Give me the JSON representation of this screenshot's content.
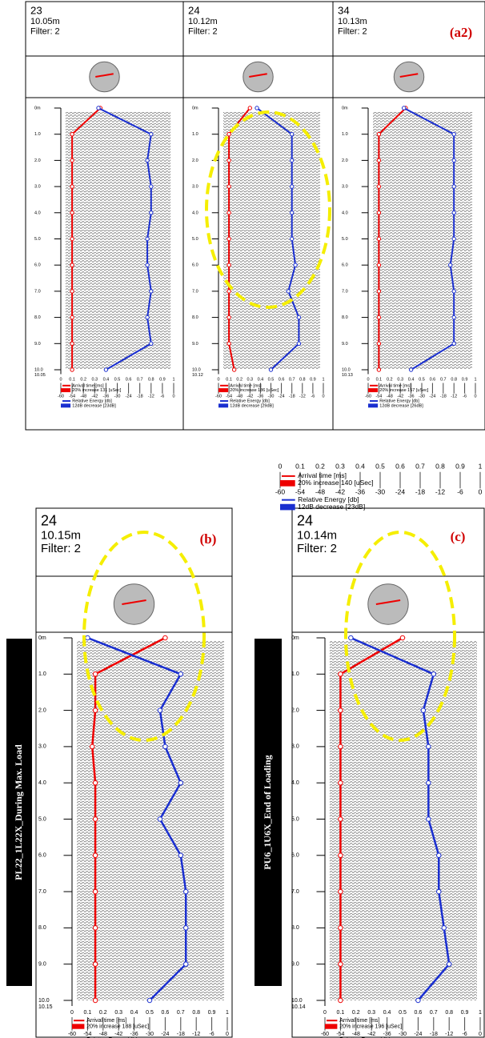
{
  "labels": {
    "top": "(a2)",
    "b": "(b)",
    "c": "(c)",
    "side_b": "PL22_1L22X_During Max. Load",
    "side_c": "PU6_1U6X_End of Loading"
  },
  "depth_ticks": [
    "0m",
    "1.0",
    "2.0",
    "3.0",
    "4.0",
    "5.0",
    "6.0",
    "7.0",
    "8.0",
    "9.0",
    "10.0"
  ],
  "time_ticks": [
    0,
    0.1,
    0.2,
    0.3,
    0.4,
    0.5,
    0.6,
    0.7,
    0.8,
    0.9,
    1
  ],
  "energy_ticks": [
    -60,
    -54,
    -48,
    -42,
    -36,
    -30,
    -24,
    -18,
    -12,
    -6,
    0
  ],
  "legend": {
    "arrival": "Arrival time [ms]",
    "energy": "Relative Energy [db]",
    "increase": "20% increase  140 [uSec]",
    "decrease": "12dB decrease [23dB]"
  },
  "panels": [
    {
      "id": "23",
      "length": "10.05m",
      "filter": "Filter: 2",
      "bottom": "10.05",
      "increase": "20% increase  131 [uSec]",
      "decrease": "12dB decrease [23dB]",
      "arrival": [
        0.35,
        0.1,
        0.1,
        0.1,
        0.1,
        0.1,
        0.1,
        0.1,
        0.1,
        0.1,
        0.1
      ],
      "energy": [
        -40,
        -12,
        -14,
        -12,
        -12,
        -14,
        -14,
        -12,
        -14,
        -12,
        -36
      ]
    },
    {
      "id": "24",
      "length": "10.12m",
      "filter": "Filter: 2",
      "bottom": "10.12",
      "increase": "20% increase  186 [uSec]",
      "decrease": "12dB decrease [29dB]",
      "arrival": [
        0.3,
        0.1,
        0.1,
        0.1,
        0.1,
        0.1,
        0.1,
        0.1,
        0.1,
        0.1,
        0.15
      ],
      "energy": [
        -38,
        -18,
        -18,
        -18,
        -18,
        -18,
        -16,
        -20,
        -14,
        -14,
        -30
      ]
    },
    {
      "id": "34",
      "length": "10.13m",
      "filter": "Filter: 2",
      "bottom": "10.13",
      "increase": "20% increase  157 [uSec]",
      "decrease": "12dB decrease [26dB]",
      "arrival": [
        0.35,
        0.1,
        0.1,
        0.1,
        0.1,
        0.1,
        0.1,
        0.1,
        0.1,
        0.1,
        0.1
      ],
      "energy": [
        -40,
        -12,
        -12,
        -12,
        -12,
        -12,
        -14,
        -12,
        -12,
        -12,
        -36
      ]
    },
    {
      "id": "24",
      "length": "10.15m",
      "filter": "Filter: 2",
      "bottom": "10.15",
      "increase": "20% increase  188 [uSec]",
      "decrease": "12dB decrease [28dB]",
      "arrival": [
        0.6,
        0.15,
        0.15,
        0.13,
        0.15,
        0.15,
        0.15,
        0.15,
        0.15,
        0.15,
        0.15
      ],
      "energy": [
        -54,
        -18,
        -26,
        -24,
        -18,
        -26,
        -18,
        -16,
        -16,
        -16,
        -30
      ]
    },
    {
      "id": "24",
      "length": "10.14m",
      "filter": "Filter: 2",
      "bottom": "10.14",
      "increase": "20% increase  196 [uSec]",
      "decrease": "12dB decrease [27dB]",
      "arrival": [
        0.5,
        0.1,
        0.1,
        0.1,
        0.1,
        0.1,
        0.1,
        0.1,
        0.1,
        0.1,
        0.1
      ],
      "energy": [
        -50,
        -18,
        -22,
        -20,
        -20,
        -20,
        -16,
        -16,
        -14,
        -12,
        -24
      ]
    }
  ]
}
